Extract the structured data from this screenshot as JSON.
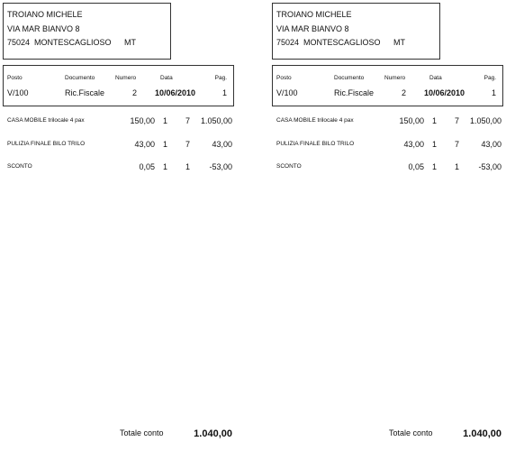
{
  "copies": [
    {
      "address": {
        "name": "TROIANO MICHELE",
        "street": "VIA MAR BIANVO 8",
        "zip": "75024",
        "city": "MONTESCAGLIOSO",
        "province": "MT"
      },
      "header": {
        "labels": [
          "Posto",
          "Documento",
          "Numero",
          "Data",
          "Pag."
        ],
        "values": [
          "V/100",
          "Ric.Fiscale",
          2,
          "10/06/2010",
          1
        ]
      },
      "items": [
        [
          "CASA MOBILE trilocale 4 pax",
          "150,00",
          1,
          7,
          "1.050,00"
        ],
        [
          "PULIZIA FINALE BILO TRILO",
          "43,00",
          1,
          7,
          "43,00"
        ],
        [
          "SCONTO",
          "0,05",
          1,
          1,
          "-53,00"
        ]
      ],
      "total": {
        "label": "Totale conto",
        "value": "1.040,00"
      }
    },
    {
      "address": {
        "name": "TROIANO MICHELE",
        "street": "VIA MAR BIANVO 8",
        "zip": "75024",
        "city": "MONTESCAGLIOSO",
        "province": "MT"
      },
      "header": {
        "labels": [
          "Posto",
          "Documento",
          "Numero",
          "Data",
          "Pag."
        ],
        "values": [
          "V/100",
          "Ric.Fiscale",
          2,
          "10/06/2010",
          1
        ]
      },
      "items": [
        [
          "CASA MOBILE trilocale 4 pax",
          "150,00",
          1,
          7,
          "1.050,00"
        ],
        [
          "PULIZIA FINALE BILO TRILO",
          "43,00",
          1,
          7,
          "43,00"
        ],
        [
          "SCONTO",
          "0,05",
          1,
          1,
          "-53,00"
        ]
      ],
      "total": {
        "label": "Totale conto",
        "value": "1.040,00"
      }
    }
  ]
}
